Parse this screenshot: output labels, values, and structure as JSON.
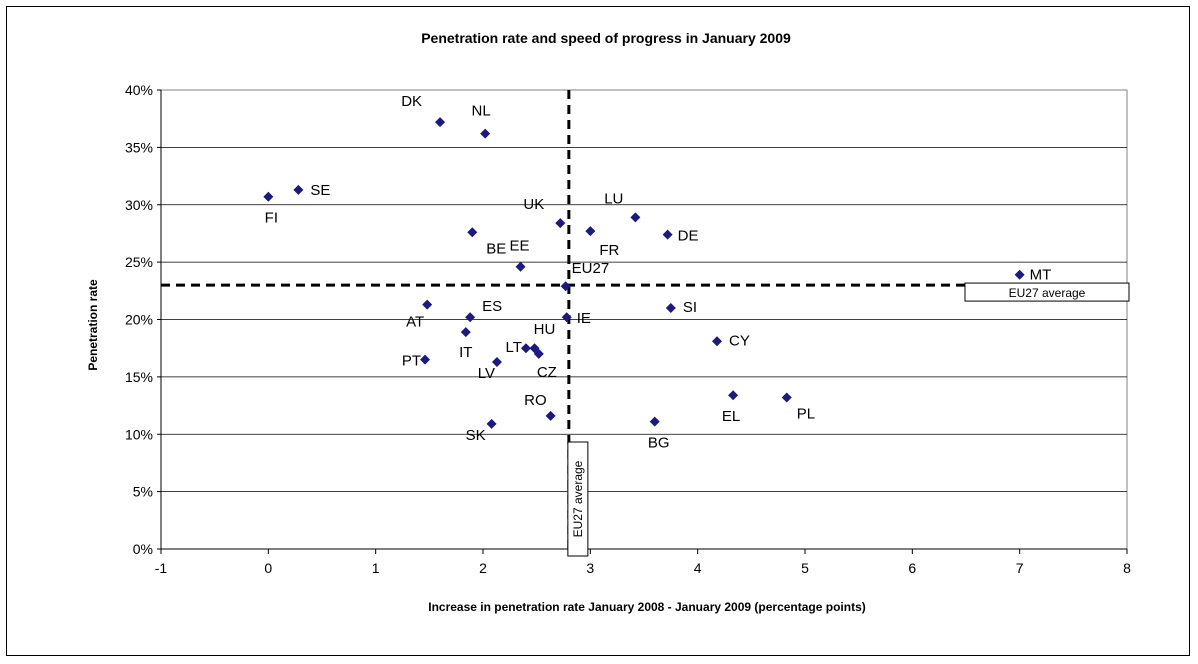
{
  "chart_data": {
    "type": "scatter",
    "title": "Penetration rate and speed of progress in January 2009",
    "xlabel": "Increase in penetration rate January 2008 - January 2009 (percentage points)",
    "ylabel": "Penetration rate",
    "xlim": [
      -1,
      8
    ],
    "ylim": [
      0,
      40
    ],
    "x_ticks": [
      "-1",
      "0",
      "1",
      "2",
      "3",
      "4",
      "5",
      "6",
      "7",
      "8"
    ],
    "y_ticks": [
      "0%",
      "5%",
      "10%",
      "15%",
      "20%",
      "25%",
      "30%",
      "35%",
      "40%"
    ],
    "grid": "horizontal",
    "marker_color": "#1a1a80",
    "points": [
      {
        "label": "DK",
        "x": 1.6,
        "y": 37.2
      },
      {
        "label": "NL",
        "x": 2.02,
        "y": 36.2
      },
      {
        "label": "FI",
        "x": 0.0,
        "y": 30.7
      },
      {
        "label": "SE",
        "x": 0.28,
        "y": 31.3
      },
      {
        "label": "UK",
        "x": 2.72,
        "y": 28.4
      },
      {
        "label": "LU",
        "x": 3.42,
        "y": 28.9
      },
      {
        "label": "FR",
        "x": 3.0,
        "y": 27.7
      },
      {
        "label": "DE",
        "x": 3.72,
        "y": 27.4
      },
      {
        "label": "BE",
        "x": 1.9,
        "y": 27.6
      },
      {
        "label": "EE",
        "x": 2.35,
        "y": 24.6
      },
      {
        "label": "EU27",
        "x": 2.77,
        "y": 22.9
      },
      {
        "label": "MT",
        "x": 7.0,
        "y": 23.9
      },
      {
        "label": "AT",
        "x": 1.48,
        "y": 21.3
      },
      {
        "label": "ES",
        "x": 1.88,
        "y": 20.2
      },
      {
        "label": "IE",
        "x": 2.78,
        "y": 20.2
      },
      {
        "label": "SI",
        "x": 3.75,
        "y": 21.0
      },
      {
        "label": "IT",
        "x": 1.84,
        "y": 18.9
      },
      {
        "label": "HU",
        "x": 2.48,
        "y": 17.5
      },
      {
        "label": "LT",
        "x": 2.4,
        "y": 17.5
      },
      {
        "label": "CZ",
        "x": 2.52,
        "y": 17.0
      },
      {
        "label": "CY",
        "x": 4.18,
        "y": 18.1
      },
      {
        "label": "PT",
        "x": 1.46,
        "y": 16.5
      },
      {
        "label": "LV",
        "x": 2.13,
        "y": 16.3
      },
      {
        "label": "RO",
        "x": 2.63,
        "y": 11.6
      },
      {
        "label": "SK",
        "x": 2.08,
        "y": 10.9
      },
      {
        "label": "BG",
        "x": 3.6,
        "y": 11.1
      },
      {
        "label": "EL",
        "x": 4.33,
        "y": 13.4
      },
      {
        "label": "PL",
        "x": 4.83,
        "y": 13.2
      }
    ],
    "reference_lines": [
      {
        "orientation": "vertical",
        "x": 2.8,
        "label": "EU27 average"
      },
      {
        "orientation": "horizontal",
        "y": 23.0,
        "label": "EU27 average"
      }
    ]
  }
}
